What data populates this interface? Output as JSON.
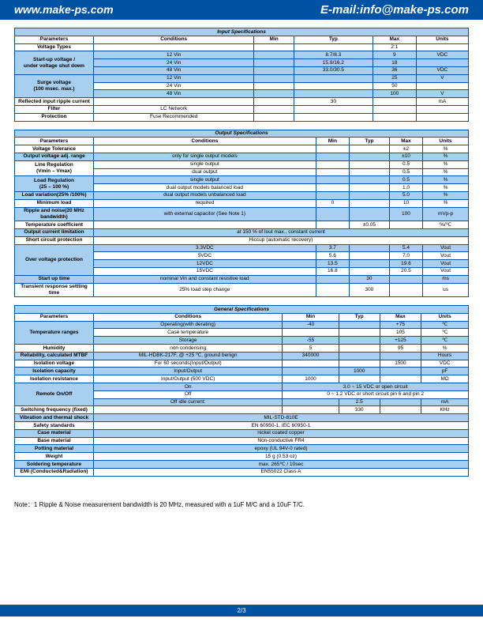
{
  "header": {
    "url": "www.make-ps.com",
    "email": "E-mail:info@make-ps.com"
  },
  "footer": {
    "page": "2/3"
  },
  "note": "Note：1 Ripple & Noise measurement bandwidth is 20 MHz, measured with a 1uF M/C and a 10uF T/C.",
  "cols": [
    "Parameters",
    "Conditions",
    "Min",
    "Typ",
    "Max",
    "Units"
  ],
  "input": {
    "title": "Input Specifications",
    "rows": [
      {
        "p": "Voltage Types",
        "c": "",
        "mn": "",
        "t": "",
        "mx": "2:1",
        "u": "",
        "blue": false
      },
      {
        "p": "Start-up voltage /\nunder voltage shut down",
        "c": "12 Vin",
        "mn": "",
        "t": "8.7/8.3",
        "mx": "9",
        "u": "VDC",
        "blue": true,
        "span": 3
      },
      {
        "c": "24 Vin",
        "mn": "",
        "t": "15.9/16.2",
        "mx": "18",
        "u": "",
        "blue": true
      },
      {
        "c": "48 Vin",
        "mn": "",
        "t": "33.0/30.5",
        "mx": "36",
        "u": "VDC",
        "blue": true
      },
      {
        "p": "Surge voltage\n(100 msec. max.)",
        "c": "12 Vin",
        "mn": "",
        "t": "",
        "mx": "25",
        "u": "V",
        "blue": true,
        "span": 3,
        "pblue": true
      },
      {
        "c": "24 Vin",
        "mn": "",
        "t": "",
        "mx": "50",
        "u": "",
        "blue": false
      },
      {
        "c": "48 Vin",
        "mn": "",
        "t": "",
        "mx": "100",
        "u": "V",
        "blue": true
      },
      {
        "p": "Reflected input ripple current",
        "c": "",
        "mn": "",
        "t": "30",
        "mx": "",
        "u": "mA",
        "blue": false
      },
      {
        "p": "Filter",
        "c": "LC Network",
        "mn": "",
        "t": "",
        "mx": "",
        "u": "",
        "blue": false
      },
      {
        "p": "Protection",
        "c": "Fuse Recommended",
        "mn": "",
        "t": "",
        "mx": "",
        "u": "",
        "blue": false
      }
    ]
  },
  "output": {
    "title": "Output Specifications",
    "rows": [
      {
        "p": "Voltage Tolerance",
        "c": "",
        "mn": "",
        "t": "",
        "mx": "±2",
        "u": "%",
        "blue": false
      },
      {
        "p": "Output voltage adj. range",
        "c": "only for single output models",
        "mn": "",
        "t": "",
        "mx": "±10",
        "u": "%",
        "blue": true
      },
      {
        "p": "Line Regulation\n(Vmin – Vmax)",
        "c": "single output",
        "mn": "",
        "t": "",
        "mx": "0.5",
        "u": "%",
        "blue": false,
        "span": 2
      },
      {
        "c": "dual output",
        "mn": "",
        "t": "",
        "mx": "0.5",
        "u": "%",
        "blue": false
      },
      {
        "p": "Load Regulation\n(25 – 100 %)",
        "c": "single output",
        "mn": "",
        "t": "",
        "mx": "0.5",
        "u": "%",
        "blue": true,
        "span": 2
      },
      {
        "c": "dual output models balanced load",
        "mn": "",
        "t": "",
        "mx": "1.0",
        "u": "%",
        "blue": false
      },
      {
        "p": "Load variation(25% /100%)",
        "c": "dual output models unbalanced load",
        "mn": "",
        "t": "",
        "mx": "5.0",
        "u": "%",
        "blue": true
      },
      {
        "p": "Minimum load",
        "c": "required",
        "mn": "0",
        "t": "",
        "mx": "10",
        "u": "%",
        "blue": false
      },
      {
        "p": "Ripple and noise(20 MHz bandwidth)",
        "c": "with external capacitor (See Note 1)",
        "mn": "",
        "t": "",
        "mx": "100",
        "u": "mVp-p",
        "blue": true
      },
      {
        "p": "Temperature coefficient",
        "c": "",
        "mn": "",
        "t": "±0.05",
        "mx": "",
        "u": "%/℃",
        "blue": false
      },
      {
        "p": "Output current limitation",
        "merged": "at 150 % of Iout max., constant current",
        "blue": true
      },
      {
        "p": "Short circuit protection",
        "merged": "Hiccup (automatic recovery)",
        "blue": false
      },
      {
        "p": "Over voltage protection",
        "c": "3.3VDC",
        "mn": "3.7",
        "t": "",
        "mx": "5.4",
        "u": "Vout",
        "blue": true,
        "span": 4,
        "pblue": true
      },
      {
        "c": "5VDC",
        "mn": "5.6",
        "t": "",
        "mx": "7.0",
        "u": "Vout",
        "blue": false
      },
      {
        "c": "12VDC",
        "mn": "13.5",
        "t": "",
        "mx": "19.6",
        "u": "Vout",
        "blue": true
      },
      {
        "c": "15VDC",
        "mn": "16.8",
        "t": "",
        "mx": "20.5",
        "u": "Vout",
        "blue": false
      },
      {
        "p": "Start up time",
        "c": "nominal Vin and constant resistive load",
        "mn": "",
        "t": "30",
        "mx": "",
        "u": "ms",
        "blue": true
      },
      {
        "p": "Transient response settling time",
        "c": "25% load step change",
        "mn": "",
        "t": "300",
        "mx": "",
        "u": "us",
        "blue": false
      }
    ]
  },
  "general": {
    "title": "General  Specifications",
    "rows": [
      {
        "p": "Temperature ranges",
        "c": "Operating(with derating)",
        "mn": "-40",
        "t": "",
        "mx": "+75",
        "u": "℃",
        "blue": true,
        "span": 3,
        "pblue": true
      },
      {
        "c": "Case temperature",
        "mn": "",
        "t": "",
        "mx": "105",
        "u": "℃",
        "blue": false
      },
      {
        "c": "Storage",
        "mn": "-55",
        "t": "",
        "mx": "+125",
        "u": "℃",
        "blue": true
      },
      {
        "p": "Humidity",
        "c": "non condensing",
        "mn": "5",
        "t": "",
        "mx": "95",
        "u": "%",
        "blue": false
      },
      {
        "p": "Reliability, calculated MTBF",
        "c": "MIL-HDBK-217F, @ +25 ℃, ground benign",
        "mn": "340000",
        "t": "",
        "mx": "",
        "u": "Hours",
        "blue": true
      },
      {
        "p": "Isolation voltage",
        "c": "For 60 seconds(Input/Output)",
        "mn": "",
        "t": "",
        "mx": "1500",
        "u": "VDC",
        "blue": false
      },
      {
        "p": "Isolation capacity",
        "c": "Input/Output",
        "mn": "",
        "t": "1000",
        "mx": "",
        "u": "pF",
        "blue": true
      },
      {
        "p": "Isolation resistance",
        "c": "Input/Output (500 VDC)",
        "mn": "1000",
        "t": "",
        "mx": "",
        "u": "MΩ",
        "blue": false
      },
      {
        "p": "Remote On/Off",
        "c": "On",
        "merged2": "3.0 ~ 15 VDC or open circuit",
        "blue": true,
        "span": 3,
        "pblue": true
      },
      {
        "c": "Off",
        "merged2": "0 ~ 1.2 VDC or short circuit pin 6 and pin 2",
        "blue": false
      },
      {
        "c": "Off idle current:",
        "mn": "",
        "t": "2.5",
        "mx": "",
        "u": "mA",
        "blue": true
      },
      {
        "p": "Switching frequency (fixed)",
        "c": "",
        "mn": "",
        "t": "330",
        "mx": "",
        "u": "KHz",
        "blue": false
      },
      {
        "p": "Vibration and thermal shock",
        "merged": "MIL-STD-810E",
        "blue": true
      },
      {
        "p": "Safety standards",
        "merged": "EN 60950-1, IEC 60950-1",
        "blue": false
      },
      {
        "p": "Case material",
        "merged": "nickel coated copper",
        "blue": true
      },
      {
        "p": "Base material",
        "merged": "Non-conductive FR4",
        "blue": false
      },
      {
        "p": "Potting material",
        "merged": "epoxy (UL 94V-0 rated)",
        "blue": true
      },
      {
        "p": "Weight",
        "merged": "15 g (0.53 oz)",
        "blue": false
      },
      {
        "p": "Soldering temperature",
        "merged": "max. 265℃  /  10sec",
        "blue": true
      },
      {
        "p": "EMI (Conducted&Radiation)",
        "merged": "EN55022 Class A",
        "blue": false
      }
    ]
  }
}
